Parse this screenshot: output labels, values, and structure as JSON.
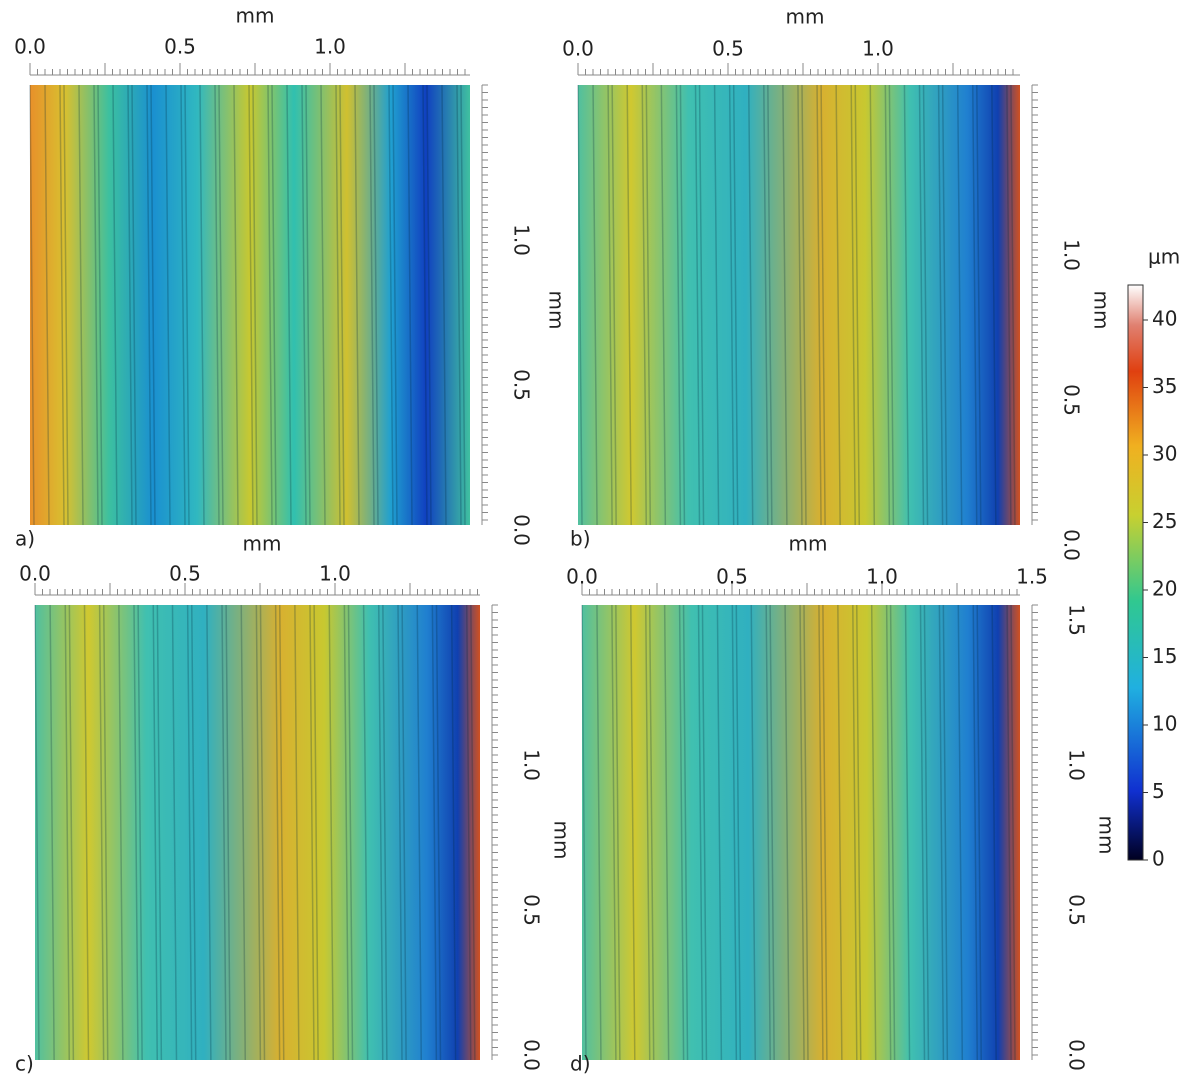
{
  "panels": [
    {
      "label": "a)",
      "top_axis": {
        "unit": "mm",
        "ticks": [
          "0.0",
          "0.5",
          "1.0"
        ]
      },
      "side_axis": {
        "unit": "mm",
        "ticks": [
          "1.0",
          "0.5",
          "0.0"
        ]
      }
    },
    {
      "label": "b)",
      "top_axis": {
        "unit": "mm",
        "ticks": [
          "0.0",
          "0.5",
          "1.0"
        ]
      },
      "side_axis": {
        "unit": "mm",
        "ticks": [
          "1.0",
          "0.5",
          "0.0"
        ]
      }
    },
    {
      "label": "c)",
      "top_axis": {
        "unit": "mm",
        "ticks": [
          "0.0",
          "0.5",
          "1.0"
        ]
      },
      "side_axis": {
        "unit": "mm",
        "ticks": [
          "1.0",
          "0.5",
          "0.0"
        ]
      }
    },
    {
      "label": "d)",
      "top_axis": {
        "unit": "mm",
        "ticks": [
          "0.0",
          "0.5",
          "1.0",
          "1.5"
        ]
      },
      "side_axis": {
        "unit": "mm",
        "ticks": [
          "1.5",
          "1.0",
          "0.5",
          "0.0"
        ]
      }
    }
  ],
  "colorbar": {
    "unit": "μm",
    "ticks": [
      "40",
      "35",
      "30",
      "25",
      "20",
      "15",
      "10",
      "5",
      "0"
    ]
  }
}
